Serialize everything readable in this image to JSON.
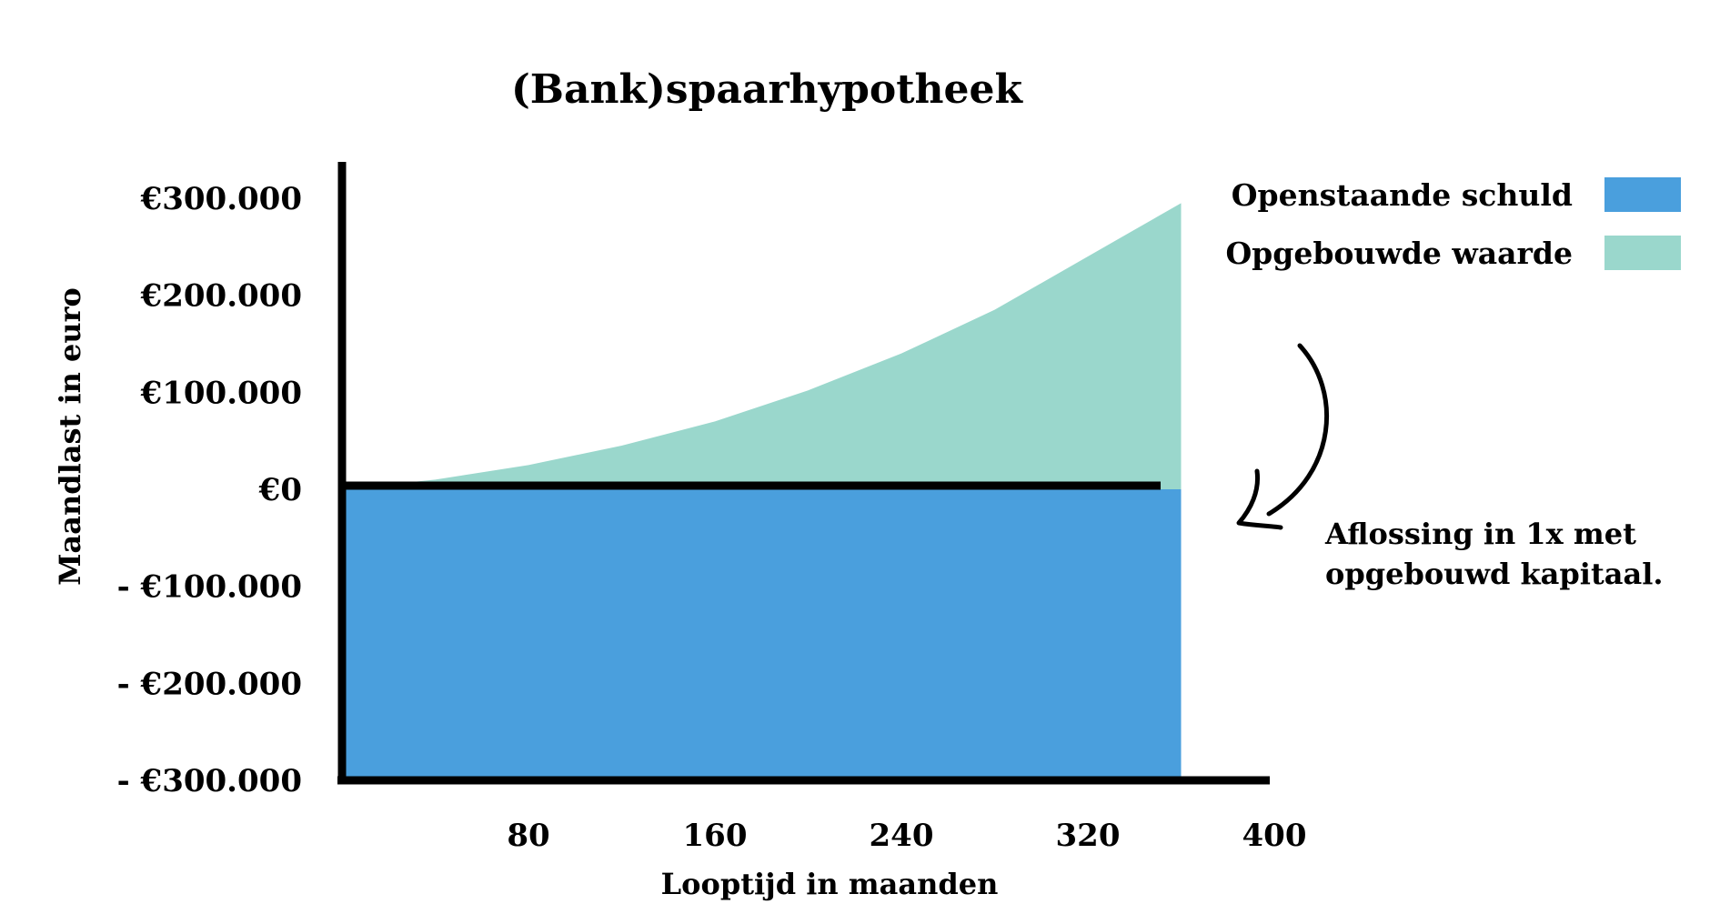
{
  "chart_data": {
    "type": "area",
    "title": "(Bank)spaarhypotheek",
    "xlabel": "Looptijd in maanden",
    "ylabel": "Maandlast in euro",
    "xlim": [
      0,
      400
    ],
    "ylim": [
      -300000,
      300000
    ],
    "x_ticks": [
      {
        "value": 80,
        "label": "80"
      },
      {
        "value": 160,
        "label": "160"
      },
      {
        "value": 240,
        "label": "240"
      },
      {
        "value": 320,
        "label": "320"
      },
      {
        "value": 400,
        "label": "400"
      }
    ],
    "y_ticks": [
      {
        "value": 300000,
        "label": "€300.000"
      },
      {
        "value": 200000,
        "label": "€200.000"
      },
      {
        "value": 100000,
        "label": "€100.000"
      },
      {
        "value": 0,
        "label": "€0"
      },
      {
        "value": -100000,
        "label": "- €100.000"
      },
      {
        "value": -200000,
        "label": "- €200.000"
      },
      {
        "value": -300000,
        "label": "- €300.000"
      }
    ],
    "series": [
      {
        "name": "Openstaande schuld",
        "color": "#4a9fdd",
        "x": [
          0,
          360
        ],
        "values": [
          -300000,
          -300000
        ]
      },
      {
        "name": "Opgebouwde waarde",
        "color": "#9ad7cc",
        "x": [
          0,
          40,
          80,
          120,
          160,
          200,
          240,
          280,
          320,
          360
        ],
        "values": [
          0,
          10000,
          25000,
          45000,
          70000,
          102000,
          140000,
          185000,
          240000,
          295000
        ]
      }
    ],
    "legend_position": "top-right",
    "grid": false,
    "annotation": {
      "lines": [
        "Aflossing in 1x met",
        "opgebouwd kapitaal."
      ]
    }
  }
}
